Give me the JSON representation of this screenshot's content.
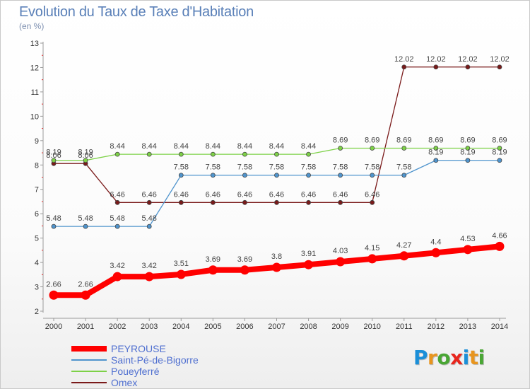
{
  "header": {
    "title": "Evolution du Taux de Taxe d'Habitation",
    "unit": "(en %)"
  },
  "logo": {
    "text": "Proxiti",
    "letters": [
      "P",
      "r",
      "o",
      "x",
      "i",
      "t",
      "i"
    ],
    "letter_colors": [
      "#1b8fd8",
      "#e8951e",
      "#49a634",
      "#e8261e",
      "#1b8fd8",
      "#e8951e",
      "#49a634"
    ]
  },
  "chart_data": {
    "type": "line",
    "title": "Evolution du Taux de Taxe d'Habitation",
    "ylabel": "(en %)",
    "xlabel": "",
    "x": [
      "2000",
      "2001",
      "2002",
      "2003",
      "2004",
      "2005",
      "2006",
      "2007",
      "2008",
      "2009",
      "2010",
      "2011",
      "2012",
      "2013",
      "2014"
    ],
    "ylim": [
      2,
      13
    ],
    "yticks": [
      2,
      3,
      4,
      5,
      6,
      7,
      8,
      9,
      10,
      11,
      12,
      13
    ],
    "grid": false,
    "legend_position": "bottom-left",
    "series": [
      {
        "name": "PEYROUSE",
        "color": "#ff0000",
        "values": [
          2.66,
          2.66,
          3.42,
          3.42,
          3.51,
          3.69,
          3.69,
          3.8,
          3.91,
          4.03,
          4.15,
          4.27,
          4.4,
          4.53,
          4.66
        ],
        "labels": [
          "2.66",
          "2.66",
          "3.42",
          "3.42",
          "3.51",
          "3.69",
          "3.69",
          "3.8",
          "3.91",
          "4.03",
          "4.15",
          "4.27",
          "4.4",
          "4.53",
          "4.66"
        ]
      },
      {
        "name": "Saint-Pé-de-Bigorre",
        "color": "#4f94cd",
        "values": [
          5.48,
          5.48,
          5.48,
          5.48,
          7.58,
          7.58,
          7.58,
          7.58,
          7.58,
          7.58,
          7.58,
          7.58,
          8.19,
          8.19,
          8.19
        ],
        "labels": [
          "5.48",
          "5.48",
          "5.48",
          "5.48",
          "7.58",
          "7.58",
          "7.58",
          "7.58",
          "7.58",
          "7.58",
          "7.58",
          "7.58",
          "8.19",
          "8.19",
          "8.19"
        ]
      },
      {
        "name": "Poueyferré",
        "color": "#7dd147",
        "values": [
          8.19,
          8.19,
          8.44,
          8.44,
          8.44,
          8.44,
          8.44,
          8.44,
          8.44,
          8.69,
          8.69,
          8.69,
          8.69,
          8.69,
          8.69
        ],
        "labels": [
          "8.19",
          "8.19",
          "8.44",
          "8.44",
          "8.44",
          "8.44",
          "8.44",
          "8.44",
          "8.44",
          "8.69",
          "8.69",
          "8.69",
          "8.69",
          "8.69",
          "8.69"
        ]
      },
      {
        "name": "Omex",
        "color": "#7a1a1a",
        "values": [
          8.06,
          8.06,
          6.46,
          6.46,
          6.46,
          6.46,
          6.46,
          6.46,
          6.46,
          6.46,
          6.46,
          12.02,
          12.02,
          12.02,
          12.02
        ],
        "labels": [
          "8.06",
          "8.06",
          "6.46",
          "6.46",
          "6.46",
          "6.46",
          "6.46",
          "6.46",
          "6.46",
          "6.46",
          "6.46",
          "12.02",
          "12.02",
          "12.02",
          "12.02"
        ]
      }
    ]
  }
}
